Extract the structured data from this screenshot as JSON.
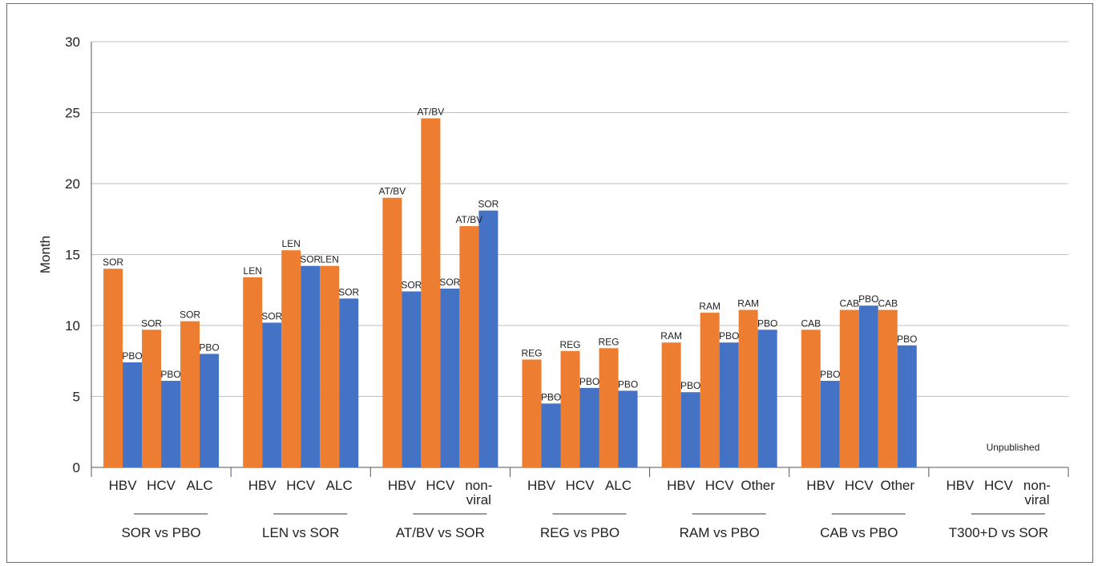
{
  "chart_data": {
    "type": "bar",
    "ylabel": "Month",
    "ylim": [
      0,
      30
    ],
    "yticks": [
      0,
      5,
      10,
      15,
      20,
      25,
      30
    ],
    "grid": true,
    "colors": {
      "orange": "#ED7D31",
      "blue": "#4472C4"
    },
    "groups": [
      {
        "name": "SOR vs PBO",
        "categories": [
          {
            "label": [
              "HBV"
            ],
            "bars": [
              {
                "label": "SOR",
                "value": 14.0,
                "color": "orange"
              },
              {
                "label": "PBO",
                "value": 7.4,
                "color": "blue"
              }
            ]
          },
          {
            "label": [
              "HCV"
            ],
            "bars": [
              {
                "label": "SOR",
                "value": 9.7,
                "color": "orange"
              },
              {
                "label": "PBO",
                "value": 6.1,
                "color": "blue"
              }
            ]
          },
          {
            "label": [
              "ALC"
            ],
            "bars": [
              {
                "label": "SOR",
                "value": 10.3,
                "color": "orange"
              },
              {
                "label": "PBO",
                "value": 8.0,
                "color": "blue"
              }
            ]
          }
        ]
      },
      {
        "name": "LEN vs SOR",
        "categories": [
          {
            "label": [
              "HBV"
            ],
            "bars": [
              {
                "label": "LEN",
                "value": 13.4,
                "color": "orange"
              },
              {
                "label": "SOR",
                "value": 10.2,
                "color": "blue"
              }
            ]
          },
          {
            "label": [
              "HCV"
            ],
            "bars": [
              {
                "label": "LEN",
                "value": 15.3,
                "color": "orange"
              },
              {
                "label": "SOR",
                "value": 14.2,
                "color": "blue"
              }
            ]
          },
          {
            "label": [
              "ALC"
            ],
            "bars": [
              {
                "label": "LEN",
                "value": 14.2,
                "color": "orange"
              },
              {
                "label": "SOR",
                "value": 11.9,
                "color": "blue"
              }
            ]
          }
        ]
      },
      {
        "name": "AT/BV vs SOR",
        "categories": [
          {
            "label": [
              "HBV"
            ],
            "bars": [
              {
                "label": "AT/BV",
                "value": 19.0,
                "color": "orange"
              },
              {
                "label": "SOR",
                "value": 12.4,
                "color": "blue"
              }
            ]
          },
          {
            "label": [
              "HCV"
            ],
            "bars": [
              {
                "label": "AT/BV",
                "value": 24.6,
                "color": "orange"
              },
              {
                "label": "SOR",
                "value": 12.6,
                "color": "blue"
              }
            ]
          },
          {
            "label": [
              "non-",
              "viral"
            ],
            "bars": [
              {
                "label": "AT/BV",
                "value": 17.0,
                "color": "orange"
              },
              {
                "label": "SOR",
                "value": 18.1,
                "color": "blue"
              }
            ]
          }
        ]
      },
      {
        "name": "REG vs PBO",
        "categories": [
          {
            "label": [
              "HBV"
            ],
            "bars": [
              {
                "label": "REG",
                "value": 7.6,
                "color": "orange"
              },
              {
                "label": "PBO",
                "value": 4.5,
                "color": "blue"
              }
            ]
          },
          {
            "label": [
              "HCV"
            ],
            "bars": [
              {
                "label": "REG",
                "value": 8.2,
                "color": "orange"
              },
              {
                "label": "PBO",
                "value": 5.6,
                "color": "blue"
              }
            ]
          },
          {
            "label": [
              "ALC"
            ],
            "bars": [
              {
                "label": "REG",
                "value": 8.4,
                "color": "orange"
              },
              {
                "label": "PBO",
                "value": 5.4,
                "color": "blue"
              }
            ]
          }
        ]
      },
      {
        "name": "RAM vs PBO",
        "categories": [
          {
            "label": [
              "HBV"
            ],
            "bars": [
              {
                "label": "RAM",
                "value": 8.8,
                "color": "orange"
              },
              {
                "label": "PBO",
                "value": 5.3,
                "color": "blue"
              }
            ]
          },
          {
            "label": [
              "HCV"
            ],
            "bars": [
              {
                "label": "RAM",
                "value": 10.9,
                "color": "orange"
              },
              {
                "label": "PBO",
                "value": 8.8,
                "color": "blue"
              }
            ]
          },
          {
            "label": [
              "Other"
            ],
            "bars": [
              {
                "label": "RAM",
                "value": 11.1,
                "color": "orange"
              },
              {
                "label": "PBO",
                "value": 9.7,
                "color": "blue"
              }
            ]
          }
        ]
      },
      {
        "name": "CAB vs PBO",
        "categories": [
          {
            "label": [
              "HBV"
            ],
            "bars": [
              {
                "label": "CAB",
                "value": 9.7,
                "color": "orange"
              },
              {
                "label": "PBO",
                "value": 6.1,
                "color": "blue"
              }
            ]
          },
          {
            "label": [
              "HCV"
            ],
            "bars": [
              {
                "label": "CAB",
                "value": 11.1,
                "color": "orange"
              },
              {
                "label": "PBO",
                "value": 11.4,
                "color": "blue"
              }
            ]
          },
          {
            "label": [
              "Other"
            ],
            "bars": [
              {
                "label": "CAB",
                "value": 11.1,
                "color": "orange"
              },
              {
                "label": "PBO",
                "value": 8.6,
                "color": "blue"
              }
            ]
          }
        ]
      },
      {
        "name": "T300+D vs SOR",
        "note": "Unpublished",
        "categories": [
          {
            "label": [
              "HBV"
            ],
            "bars": []
          },
          {
            "label": [
              "HCV"
            ],
            "bars": []
          },
          {
            "label": [
              "non-",
              "viral"
            ],
            "bars": []
          }
        ]
      }
    ]
  }
}
